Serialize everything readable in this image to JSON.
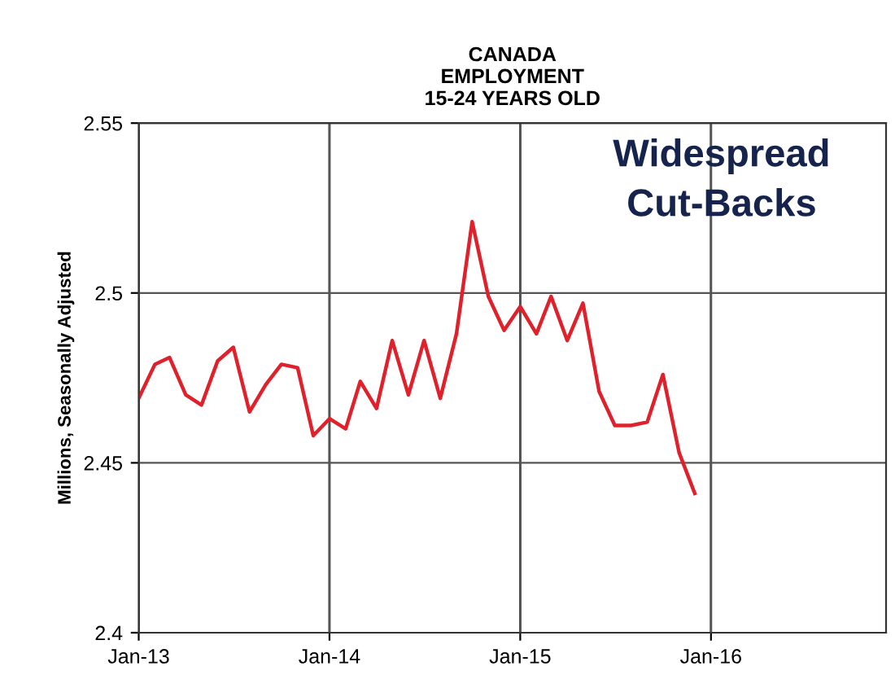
{
  "chart_data": {
    "type": "line",
    "title": "CANADA\nEMPLOYMENT\n15-24 YEARS OLD",
    "ylabel": "Millions, Seasonally Adjusted",
    "annotations": [
      "Widespread\nCut-Backs"
    ],
    "x": [
      "2013-01",
      "2013-02",
      "2013-03",
      "2013-04",
      "2013-05",
      "2013-06",
      "2013-07",
      "2013-08",
      "2013-09",
      "2013-10",
      "2013-11",
      "2013-12",
      "2014-01",
      "2014-02",
      "2014-03",
      "2014-04",
      "2014-05",
      "2014-06",
      "2014-07",
      "2014-08",
      "2014-09",
      "2014-10",
      "2014-11",
      "2014-12",
      "2015-01",
      "2015-02",
      "2015-03",
      "2015-04",
      "2015-05",
      "2015-06",
      "2015-07",
      "2015-08",
      "2015-09",
      "2015-10",
      "2015-11",
      "2015-12"
    ],
    "series": [
      {
        "color": "#e0202a",
        "values": [
          2.469,
          2.479,
          2.481,
          2.47,
          2.467,
          2.48,
          2.484,
          2.465,
          2.473,
          2.479,
          2.478,
          2.458,
          2.463,
          2.46,
          2.474,
          2.466,
          2.486,
          2.47,
          2.486,
          2.469,
          2.488,
          2.521,
          2.499,
          2.489,
          2.496,
          2.488,
          2.499,
          2.486,
          2.497,
          2.471,
          2.461,
          2.461,
          2.462,
          2.476,
          2.453,
          2.441
        ]
      }
    ],
    "xlim": [
      "2013-01",
      "2016-12"
    ],
    "xticks": [
      {
        "value": "2013-01",
        "label": "Jan-13"
      },
      {
        "value": "2014-01",
        "label": "Jan-14"
      },
      {
        "value": "2015-01",
        "label": "Jan-15"
      },
      {
        "value": "2016-01",
        "label": "Jan-16"
      }
    ],
    "ylim": [
      2.4,
      2.55
    ],
    "yticks": [
      2.4,
      2.45,
      2.5,
      2.55
    ],
    "grid": true,
    "marker": "none",
    "line_style": "solid"
  }
}
